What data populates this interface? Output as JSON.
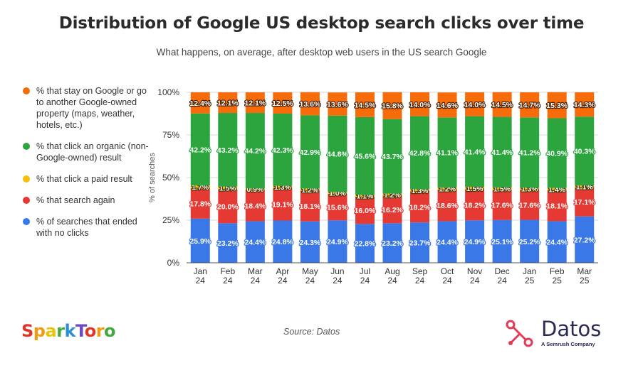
{
  "title": "Distribution of Google US desktop search clicks over time",
  "subtitle": "What happens, on average, after desktop web users in the US search Google",
  "legend": [
    {
      "label": "% that stay on Google or go to another Google-owned property (maps, weather, hotels, etc.)",
      "color": "#f76c0a"
    },
    {
      "label": "% that click an organic (non-Google-owned) result",
      "color": "#2ca53f"
    },
    {
      "label": "% that click a paid result",
      "color": "#f7be0b"
    },
    {
      "label": "% that search again",
      "color": "#e53a33"
    },
    {
      "label": "% of searches that ended with no clicks",
      "color": "#3b78e7"
    }
  ],
  "source": "Source: Datos",
  "logos": {
    "sparktoro": "SparkToro",
    "datos": "Datos",
    "datos_tagline": "A Semrush Company"
  },
  "chart_data": {
    "type": "bar",
    "stacked": true,
    "categories": [
      [
        "Jan",
        "24"
      ],
      [
        "Feb",
        "24"
      ],
      [
        "Mar",
        "24"
      ],
      [
        "Apr",
        "24"
      ],
      [
        "May",
        "24"
      ],
      [
        "Jun",
        "24"
      ],
      [
        "Jul",
        "24"
      ],
      [
        "Aug",
        "24"
      ],
      [
        "Sep",
        "24"
      ],
      [
        "Oct",
        "24"
      ],
      [
        "Nov",
        "24"
      ],
      [
        "Dec",
        "24"
      ],
      [
        "Jan",
        "25"
      ],
      [
        "Feb",
        "25"
      ],
      [
        "Mar",
        "25"
      ]
    ],
    "ylabel": "% of searches",
    "ylim": [
      0,
      100
    ],
    "yticks": [
      "0%",
      "25%",
      "50%",
      "75%",
      "100%"
    ],
    "series": [
      {
        "name": "% of searches that ended with no clicks",
        "color": "#3b78e7",
        "label_color": "#3b78e7",
        "values": [
          25.9,
          23.2,
          24.4,
          24.8,
          24.3,
          24.9,
          22.8,
          23.2,
          23.7,
          24.4,
          24.9,
          25.1,
          25.2,
          24.4,
          27.2
        ]
      },
      {
        "name": "% that search again",
        "color": "#e53a33",
        "label_color": "#e53a33",
        "values": [
          17.8,
          20.0,
          18.4,
          19.1,
          18.1,
          15.6,
          16.0,
          16.2,
          18.2,
          18.6,
          18.2,
          17.6,
          17.6,
          18.1,
          17.1
        ]
      },
      {
        "name": "% that click a paid result",
        "color": "#f7be0b",
        "label_color": "#4a3500",
        "values": [
          1.7,
          1.5,
          0.9,
          1.3,
          1.2,
          1.0,
          1.1,
          1.2,
          1.3,
          1.2,
          1.5,
          1.5,
          1.3,
          1.4,
          1.1
        ]
      },
      {
        "name": "% that click an organic (non-Google-owned) result",
        "color": "#2ca53f",
        "label_color": "#2ca53f",
        "values": [
          42.2,
          43.2,
          44.2,
          42.3,
          42.9,
          44.8,
          45.6,
          43.7,
          42.8,
          41.1,
          41.4,
          41.4,
          41.2,
          40.9,
          40.3
        ]
      },
      {
        "name": "% that stay on Google or go to another Google-owned property (maps, weather, hotels, etc.)",
        "color": "#f76c0a",
        "label_color": "#4a2000",
        "values": [
          12.4,
          12.1,
          12.1,
          12.5,
          13.6,
          13.6,
          14.5,
          15.8,
          14.0,
          14.6,
          14.0,
          14.5,
          14.7,
          15.3,
          14.3
        ]
      }
    ]
  }
}
